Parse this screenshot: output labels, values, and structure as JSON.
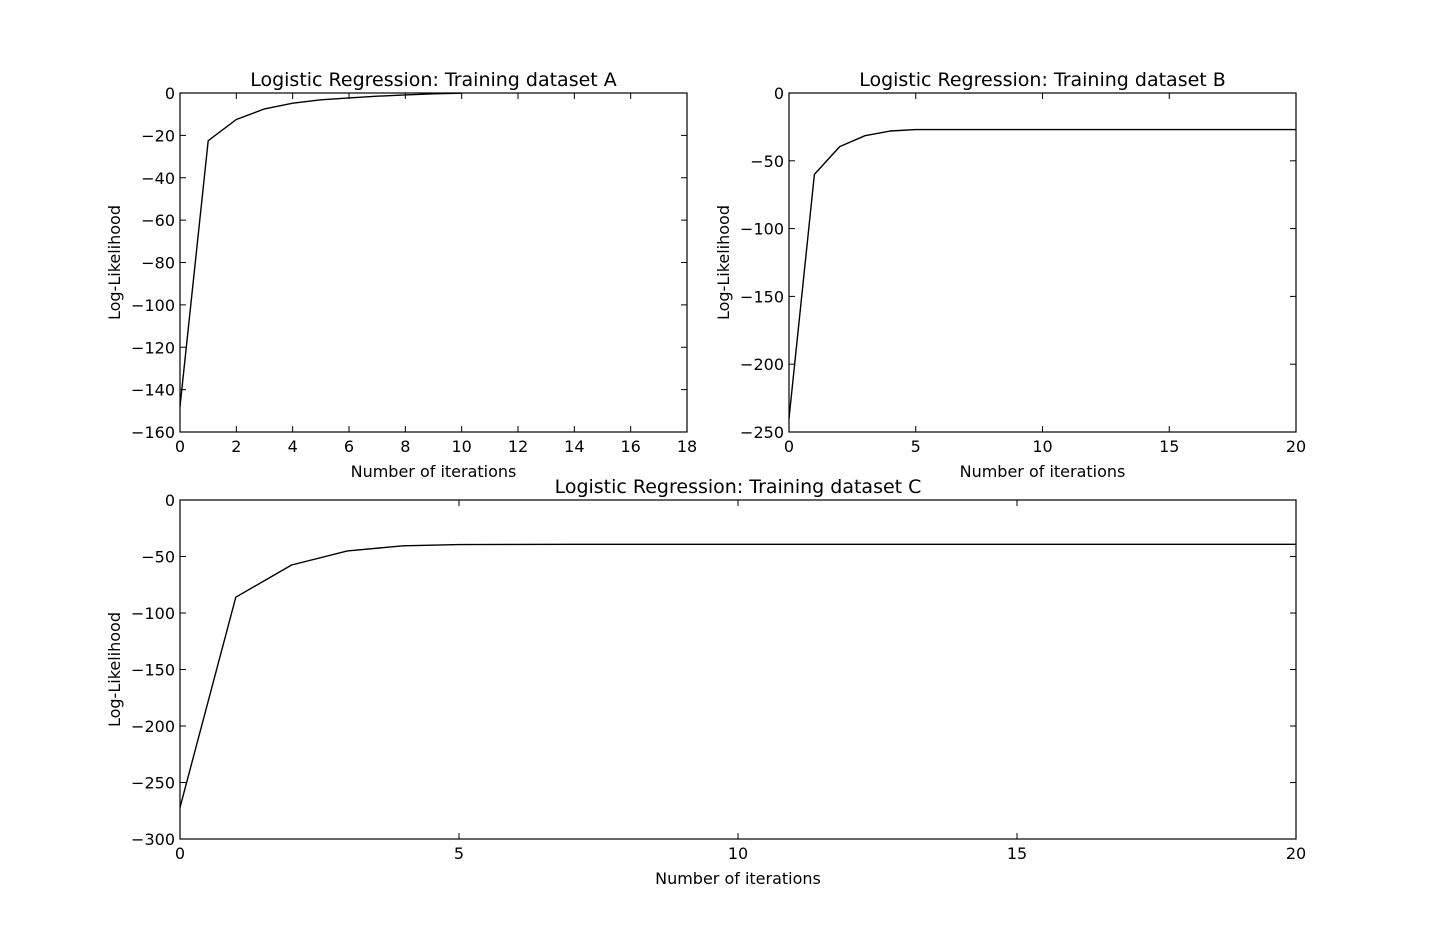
{
  "chart_data": [
    {
      "id": "chart-a",
      "type": "line",
      "title": "Logistic Regression: Training dataset A",
      "xlabel": "Number of iterations",
      "ylabel": "Log-Likelihood",
      "xlim": [
        0,
        18
      ],
      "ylim": [
        -160,
        0
      ],
      "xticks": [
        0,
        2,
        4,
        6,
        8,
        10,
        12,
        14,
        16,
        18
      ],
      "yticks": [
        0,
        -20,
        -40,
        -60,
        -80,
        -100,
        -120,
        -140,
        -160
      ],
      "grid": false,
      "line_color": "#000000",
      "series": [
        {
          "x": [
            0,
            1,
            2,
            3,
            4,
            5,
            6,
            7,
            8,
            9,
            10
          ],
          "values": [
            -148,
            -22.5,
            -12.5,
            -7.5,
            -4.8,
            -3.2,
            -2.3,
            -1.5,
            -0.9,
            -0.4,
            -0.1
          ]
        }
      ]
    },
    {
      "id": "chart-b",
      "type": "line",
      "title": "Logistic Regression: Training dataset B",
      "xlabel": "Number of iterations",
      "ylabel": "Log-Likelihood",
      "xlim": [
        0,
        20
      ],
      "ylim": [
        -250,
        0
      ],
      "xticks": [
        0,
        5,
        10,
        15,
        20
      ],
      "yticks": [
        0,
        -50,
        -100,
        -150,
        -200,
        -250
      ],
      "grid": false,
      "line_color": "#000000",
      "series": [
        {
          "x": [
            0,
            1,
            2,
            3,
            4,
            5,
            6,
            7,
            8,
            9,
            10,
            11,
            12,
            13,
            14,
            15,
            16,
            17,
            18,
            19,
            20
          ],
          "values": [
            -240,
            -60,
            -39.5,
            -31.5,
            -28,
            -27,
            -27,
            -27,
            -27,
            -27,
            -27,
            -27,
            -27,
            -27,
            -27,
            -27,
            -27,
            -27,
            -27,
            -27,
            -27
          ]
        }
      ]
    },
    {
      "id": "chart-c",
      "type": "line",
      "title": "Logistic Regression: Training dataset C",
      "xlabel": "Number of iterations",
      "ylabel": "Log-Likelihood",
      "xlim": [
        0,
        20
      ],
      "ylim": [
        -300,
        0
      ],
      "xticks": [
        0,
        5,
        10,
        15,
        20
      ],
      "yticks": [
        0,
        -50,
        -100,
        -150,
        -200,
        -250,
        -300
      ],
      "grid": false,
      "line_color": "#000000",
      "series": [
        {
          "x": [
            0,
            1,
            2,
            3,
            4,
            5,
            6,
            7,
            8,
            9,
            10,
            11,
            12,
            13,
            14,
            15,
            16,
            17,
            18,
            19,
            20
          ],
          "values": [
            -272,
            -86,
            -57.5,
            -45,
            -40.5,
            -39.5,
            -39.3,
            -39.2,
            -39.2,
            -39.2,
            -39.2,
            -39.2,
            -39.2,
            -39.2,
            -39.2,
            -39.2,
            -39.2,
            -39.2,
            -39.2,
            -39.2,
            -39.2
          ]
        }
      ]
    }
  ]
}
